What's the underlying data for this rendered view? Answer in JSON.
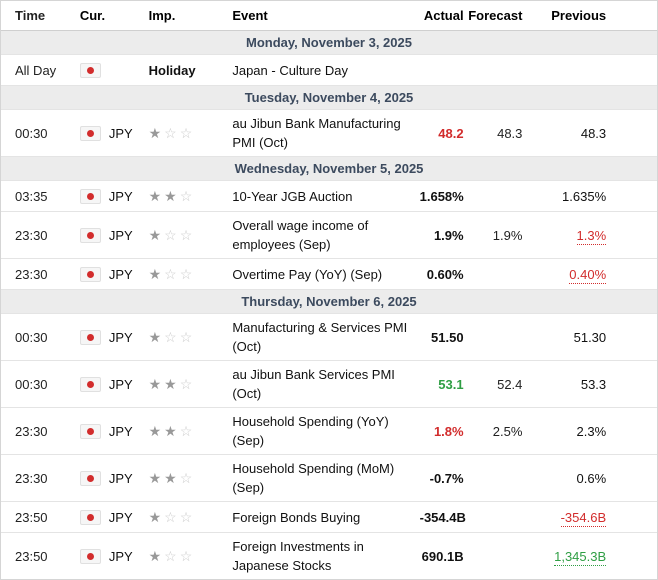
{
  "colors": {
    "accent_red": "#d22c2c",
    "accent_green": "#2f9e44",
    "day_header_bg": "#ececec",
    "day_header_text": "#3c4a5e",
    "border": "#e4e4e4",
    "text": "#111111"
  },
  "icons": {
    "star_filled": "★",
    "star_empty": "☆",
    "flag": "japan-flag"
  },
  "header": {
    "columns": [
      "Time",
      "Cur.",
      "Imp.",
      "Event",
      "Actual",
      "Forecast",
      "Previous"
    ]
  },
  "rows": [
    {
      "type": "day",
      "label": "Monday, November 3, 2025"
    },
    {
      "type": "event",
      "time": "All Day",
      "flag": true,
      "currency": "",
      "stars": 0,
      "imp_label": "Holiday",
      "event": "Japan - Culture Day",
      "actual": {
        "text": "",
        "color": "black"
      },
      "forecast": "",
      "previous": {
        "text": "",
        "color": "black",
        "revised": false
      }
    },
    {
      "type": "day",
      "label": "Tuesday, November 4, 2025"
    },
    {
      "type": "event",
      "time": "00:30",
      "flag": true,
      "currency": "JPY",
      "stars": 1,
      "imp_label": "",
      "event": "au Jibun Bank Manufacturing PMI (Oct)",
      "actual": {
        "text": "48.2",
        "color": "red"
      },
      "forecast": "48.3",
      "previous": {
        "text": "48.3",
        "color": "black",
        "revised": false
      }
    },
    {
      "type": "day",
      "label": "Wednesday, November 5, 2025"
    },
    {
      "type": "event",
      "time": "03:35",
      "flag": true,
      "currency": "JPY",
      "stars": 2,
      "imp_label": "",
      "event": "10-Year JGB Auction",
      "actual": {
        "text": "1.658%",
        "color": "black"
      },
      "forecast": "",
      "previous": {
        "text": "1.635%",
        "color": "black",
        "revised": false
      }
    },
    {
      "type": "event",
      "time": "23:30",
      "flag": true,
      "currency": "JPY",
      "stars": 1,
      "imp_label": "",
      "event": "Overall wage income of employees (Sep)",
      "actual": {
        "text": "1.9%",
        "color": "black"
      },
      "forecast": "1.9%",
      "previous": {
        "text": "1.3%",
        "color": "red",
        "revised": true
      }
    },
    {
      "type": "event",
      "time": "23:30",
      "flag": true,
      "currency": "JPY",
      "stars": 1,
      "imp_label": "",
      "event": "Overtime Pay (YoY) (Sep)",
      "actual": {
        "text": "0.60%",
        "color": "black"
      },
      "forecast": "",
      "previous": {
        "text": "0.40%",
        "color": "red",
        "revised": true
      }
    },
    {
      "type": "day",
      "label": "Thursday, November 6, 2025"
    },
    {
      "type": "event",
      "time": "00:30",
      "flag": true,
      "currency": "JPY",
      "stars": 1,
      "imp_label": "",
      "event": "Manufacturing & Services PMI (Oct)",
      "actual": {
        "text": "51.50",
        "color": "black"
      },
      "forecast": "",
      "previous": {
        "text": "51.30",
        "color": "black",
        "revised": false
      }
    },
    {
      "type": "event",
      "time": "00:30",
      "flag": true,
      "currency": "JPY",
      "stars": 2,
      "imp_label": "",
      "event": "au Jibun Bank Services PMI (Oct)",
      "actual": {
        "text": "53.1",
        "color": "green"
      },
      "forecast": "52.4",
      "previous": {
        "text": "53.3",
        "color": "black",
        "revised": false
      }
    },
    {
      "type": "event",
      "time": "23:30",
      "flag": true,
      "currency": "JPY",
      "stars": 2,
      "imp_label": "",
      "event": "Household Spending (YoY) (Sep)",
      "actual": {
        "text": "1.8%",
        "color": "red"
      },
      "forecast": "2.5%",
      "previous": {
        "text": "2.3%",
        "color": "black",
        "revised": false
      }
    },
    {
      "type": "event",
      "time": "23:30",
      "flag": true,
      "currency": "JPY",
      "stars": 2,
      "imp_label": "",
      "event": "Household Spending (MoM) (Sep)",
      "actual": {
        "text": "-0.7%",
        "color": "black"
      },
      "forecast": "",
      "previous": {
        "text": "0.6%",
        "color": "black",
        "revised": false
      }
    },
    {
      "type": "event",
      "time": "23:50",
      "flag": true,
      "currency": "JPY",
      "stars": 1,
      "imp_label": "",
      "event": "Foreign Bonds Buying",
      "actual": {
        "text": "-354.4B",
        "color": "black"
      },
      "forecast": "",
      "previous": {
        "text": "-354.6B",
        "color": "red",
        "revised": true
      }
    },
    {
      "type": "event",
      "time": "23:50",
      "flag": true,
      "currency": "JPY",
      "stars": 1,
      "imp_label": "",
      "event": "Foreign Investments in Japanese Stocks",
      "actual": {
        "text": "690.1B",
        "color": "black"
      },
      "forecast": "",
      "previous": {
        "text": "1,345.3B",
        "color": "green",
        "revised": true
      }
    }
  ]
}
